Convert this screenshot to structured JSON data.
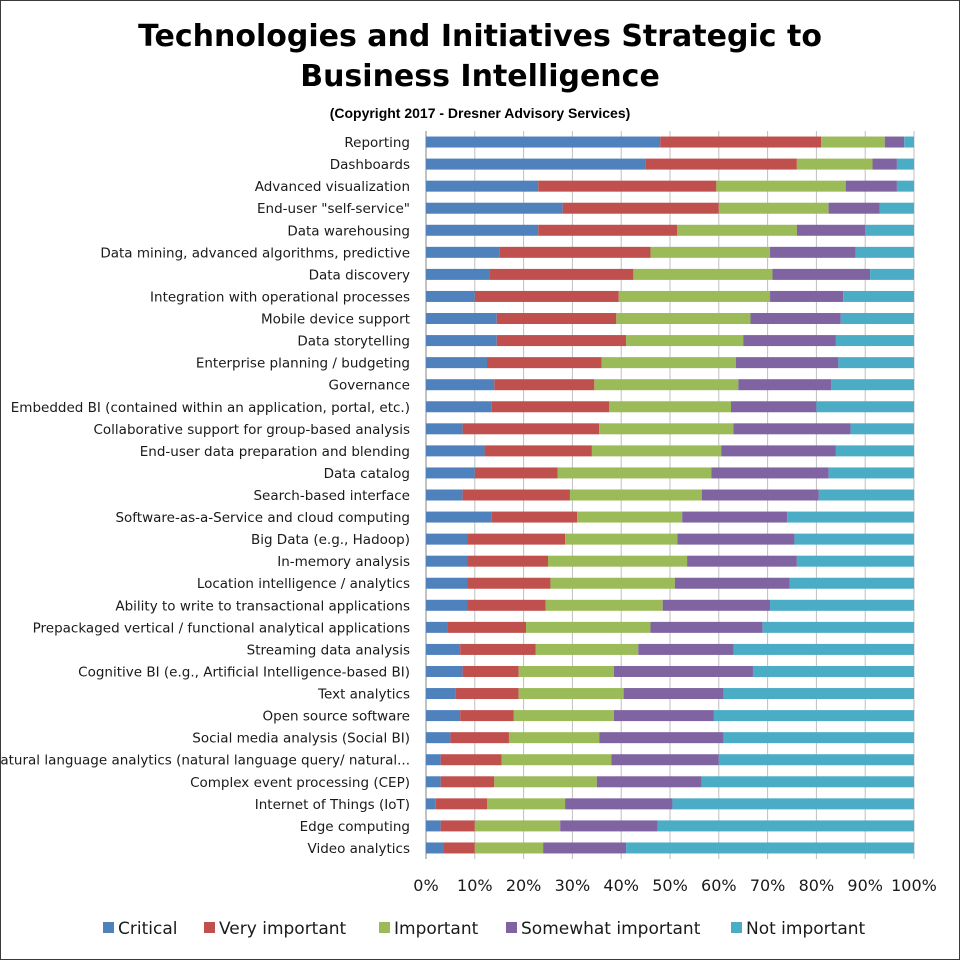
{
  "chart_data": {
    "type": "bar",
    "orientation": "horizontal",
    "stacked": "percent",
    "title": "Technologies and Initiatives Strategic to Business Intelligence",
    "subtitle": "(Copyright 2017 - Dresner Advisory Services)",
    "xlabel": "",
    "ylabel": "",
    "xlim": [
      0,
      100
    ],
    "x_ticks": [
      "0%",
      "10%",
      "20%",
      "30%",
      "40%",
      "50%",
      "60%",
      "70%",
      "80%",
      "90%",
      "100%"
    ],
    "grid": true,
    "legend_position": "bottom",
    "categories": [
      "Reporting",
      "Dashboards",
      "Advanced visualization",
      "End-user \"self-service\"",
      "Data warehousing",
      "Data mining, advanced algorithms, predictive",
      "Data discovery",
      "Integration with operational processes",
      "Mobile device support",
      "Data storytelling",
      "Enterprise planning / budgeting",
      "Governance",
      "Embedded BI (contained within an application, portal, etc.)",
      "Collaborative support for group-based analysis",
      "End-user data preparation and blending",
      "Data catalog",
      "Search-based interface",
      "Software-as-a-Service and cloud computing",
      "Big Data (e.g., Hadoop)",
      "In-memory analysis",
      "Location intelligence / analytics",
      "Ability to write to transactional applications",
      "Prepackaged vertical / functional analytical applications",
      "Streaming data analysis",
      "Cognitive BI (e.g., Artificial Intelligence-based BI)",
      "Text analytics",
      "Open source software",
      "Social media analysis (Social BI)",
      "Natural language analytics (natural language query/ natural...",
      "Complex event processing (CEP)",
      "Internet of Things (IoT)",
      "Edge computing",
      "Video analytics"
    ],
    "series": [
      {
        "name": "Critical",
        "color": "#4f81bd",
        "values": [
          48,
          45,
          23,
          28,
          23,
          15,
          13,
          10,
          14.5,
          14.5,
          12.5,
          14,
          13.5,
          7.5,
          12,
          10,
          7.5,
          13.5,
          8.5,
          8.5,
          8.5,
          8.5,
          4.5,
          7,
          7.5,
          6,
          7,
          5,
          3,
          3,
          2,
          3,
          3.5
        ]
      },
      {
        "name": "Very important",
        "color": "#c0504d",
        "values": [
          33,
          31,
          36.5,
          32,
          28.5,
          31,
          29.5,
          29.5,
          24.5,
          26.5,
          23.5,
          20.5,
          24,
          28,
          22,
          17,
          22,
          17.5,
          20,
          16.5,
          17,
          16,
          16,
          15.5,
          11.5,
          13,
          11,
          12,
          12.5,
          11,
          10.5,
          7,
          6.5
        ]
      },
      {
        "name": "Important",
        "color": "#9bbb59",
        "values": [
          13,
          15.5,
          26.5,
          22.5,
          24.5,
          24.5,
          28.5,
          31,
          27.5,
          24,
          27.5,
          29.5,
          25,
          27.5,
          26.5,
          31.5,
          27,
          21.5,
          23,
          28.5,
          25.5,
          24,
          25.5,
          21,
          19.5,
          21.5,
          20.5,
          18.5,
          22.5,
          21,
          16,
          17.5,
          14
        ]
      },
      {
        "name": "Somewhat important",
        "color": "#8064a2",
        "values": [
          4,
          5,
          10.5,
          10.5,
          14,
          17.5,
          20,
          15,
          18.5,
          19,
          21,
          19,
          17.5,
          24,
          23.5,
          24,
          24,
          21.5,
          24,
          22.5,
          23.5,
          22,
          23,
          19.5,
          28.5,
          20.5,
          20.5,
          25.5,
          22,
          21.5,
          22,
          20,
          17
        ]
      },
      {
        "name": "Not important",
        "color": "#4bacc6",
        "values": [
          2,
          3.5,
          3.5,
          7,
          10,
          12,
          9,
          14.5,
          15,
          16,
          15.5,
          17,
          20,
          13,
          16,
          17.5,
          19.5,
          26,
          24.5,
          24,
          25.5,
          29.5,
          31,
          37,
          33,
          39,
          41,
          39,
          40,
          43.5,
          49.5,
          52.5,
          59
        ]
      }
    ]
  }
}
